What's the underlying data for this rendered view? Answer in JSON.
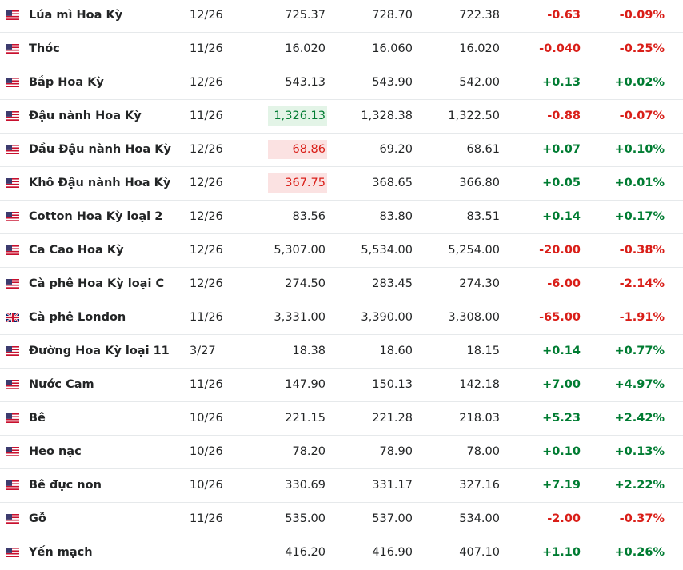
{
  "table": {
    "rows": [
      {
        "flag": "us",
        "name": "Lúa mì Hoa Kỳ",
        "month": "12/26",
        "last": "725.37",
        "high": "728.70",
        "low": "722.38",
        "change": "-0.63",
        "change_pct": "-0.09%"
      },
      {
        "flag": "us",
        "name": "Thóc",
        "month": "11/26",
        "last": "16.020",
        "high": "16.060",
        "low": "16.020",
        "change": "-0.040",
        "change_pct": "-0.25%"
      },
      {
        "flag": "us",
        "name": "Bắp Hoa Kỳ",
        "month": "12/26",
        "last": "543.13",
        "high": "543.90",
        "low": "542.00",
        "change": "+0.13",
        "change_pct": "+0.02%"
      },
      {
        "flag": "us",
        "name": "Đậu nành Hoa Kỳ",
        "month": "11/26",
        "last": "1,326.13",
        "highlight": "green",
        "high": "1,328.38",
        "low": "1,322.50",
        "change": "-0.88",
        "change_pct": "-0.07%"
      },
      {
        "flag": "us",
        "name": "Dầu Đậu nành Hoa Kỳ",
        "month": "12/26",
        "last": "68.86",
        "highlight": "red",
        "high": "69.20",
        "low": "68.61",
        "change": "+0.07",
        "change_pct": "+0.10%"
      },
      {
        "flag": "us",
        "name": "Khô Đậu nành Hoa Kỳ",
        "month": "12/26",
        "last": "367.75",
        "highlight": "red",
        "high": "368.65",
        "low": "366.80",
        "change": "+0.05",
        "change_pct": "+0.01%"
      },
      {
        "flag": "us",
        "name": "Cotton Hoa Kỳ loại 2",
        "month": "12/26",
        "last": "83.56",
        "high": "83.80",
        "low": "83.51",
        "change": "+0.14",
        "change_pct": "+0.17%"
      },
      {
        "flag": "us",
        "name": "Ca Cao Hoa Kỳ",
        "month": "12/26",
        "last": "5,307.00",
        "high": "5,534.00",
        "low": "5,254.00",
        "change": "-20.00",
        "change_pct": "-0.38%"
      },
      {
        "flag": "us",
        "name": "Cà phê Hoa Kỳ loại C",
        "month": "12/26",
        "last": "274.50",
        "high": "283.45",
        "low": "274.30",
        "change": "-6.00",
        "change_pct": "-2.14%"
      },
      {
        "flag": "uk",
        "name": "Cà phê London",
        "month": "11/26",
        "last": "3,331.00",
        "high": "3,390.00",
        "low": "3,308.00",
        "change": "-65.00",
        "change_pct": "-1.91%"
      },
      {
        "flag": "us",
        "name": "Đường Hoa Kỳ loại 11",
        "month": "3/27",
        "last": "18.38",
        "high": "18.60",
        "low": "18.15",
        "change": "+0.14",
        "change_pct": "+0.77%"
      },
      {
        "flag": "us",
        "name": "Nước Cam",
        "month": "11/26",
        "last": "147.90",
        "high": "150.13",
        "low": "142.18",
        "change": "+7.00",
        "change_pct": "+4.97%"
      },
      {
        "flag": "us",
        "name": "Bê",
        "month": "10/26",
        "last": "221.15",
        "high": "221.28",
        "low": "218.03",
        "change": "+5.23",
        "change_pct": "+2.42%"
      },
      {
        "flag": "us",
        "name": "Heo nạc",
        "month": "10/26",
        "last": "78.20",
        "high": "78.90",
        "low": "78.00",
        "change": "+0.10",
        "change_pct": "+0.13%"
      },
      {
        "flag": "us",
        "name": "Bê đực non",
        "month": "10/26",
        "last": "330.69",
        "high": "331.17",
        "low": "327.16",
        "change": "+7.19",
        "change_pct": "+2.22%"
      },
      {
        "flag": "us",
        "name": "Gỗ",
        "month": "11/26",
        "last": "535.00",
        "high": "537.00",
        "low": "534.00",
        "change": "-2.00",
        "change_pct": "-0.37%"
      },
      {
        "flag": "us",
        "name": "Yến mạch",
        "month": null,
        "last": "416.20",
        "high": "416.90",
        "low": "407.10",
        "change": "+1.10",
        "change_pct": "+0.26%"
      }
    ]
  }
}
